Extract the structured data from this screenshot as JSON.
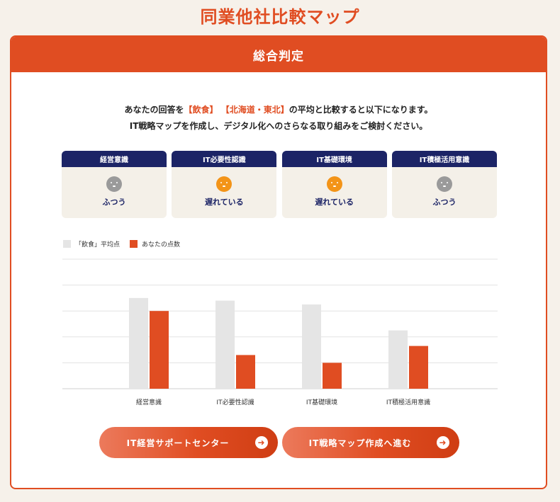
{
  "page": {
    "title": "同業他社比較マップ"
  },
  "card": {
    "header": "総合判定",
    "intro": {
      "line1_pre": "あなたの回答を",
      "industry": "【飲食】",
      "region": "【北海道・東北】",
      "line1_post": "の平均と比較すると以下になります。",
      "line2": "IT戦略マップを作成し、デジタル化へのさらなる取り組みをご検討ください。"
    }
  },
  "categories": [
    {
      "label": "経営意識",
      "status": "ふつう",
      "icon": "neutral-face-icon",
      "tone": "neutral"
    },
    {
      "label": "IT必要性認識",
      "status": "遅れている",
      "icon": "behind-face-icon",
      "tone": "behind"
    },
    {
      "label": "IT基礎環境",
      "status": "遅れている",
      "icon": "behind-face-icon",
      "tone": "behind"
    },
    {
      "label": "IT積極活用意識",
      "status": "ふつう",
      "icon": "neutral-face-icon",
      "tone": "neutral"
    }
  ],
  "legend": {
    "average": "「飲食」平均点",
    "yours": "あなたの点数"
  },
  "chart_data": {
    "type": "bar",
    "categories": [
      "経営意識",
      "IT必要性認識",
      "IT基礎環境",
      "IT積極活用意識"
    ],
    "series": [
      {
        "name": "「飲食」平均点",
        "values": [
          3.5,
          3.4,
          3.25,
          2.25
        ],
        "color": "#e5e5e5"
      },
      {
        "name": "あなたの点数",
        "values": [
          3.0,
          1.3,
          1.0,
          1.65
        ],
        "color": "#e04d22"
      }
    ],
    "ylim": [
      0,
      5
    ],
    "grid": true,
    "legend_position": "top-left"
  },
  "buttons": {
    "support": "IT経営サポートセンター",
    "map": "IT戦略マップ作成へ進む"
  },
  "colors": {
    "accent": "#e04d22",
    "navy": "#1c2466",
    "neutral": "#9a9a9a",
    "behind": "#f39418"
  }
}
